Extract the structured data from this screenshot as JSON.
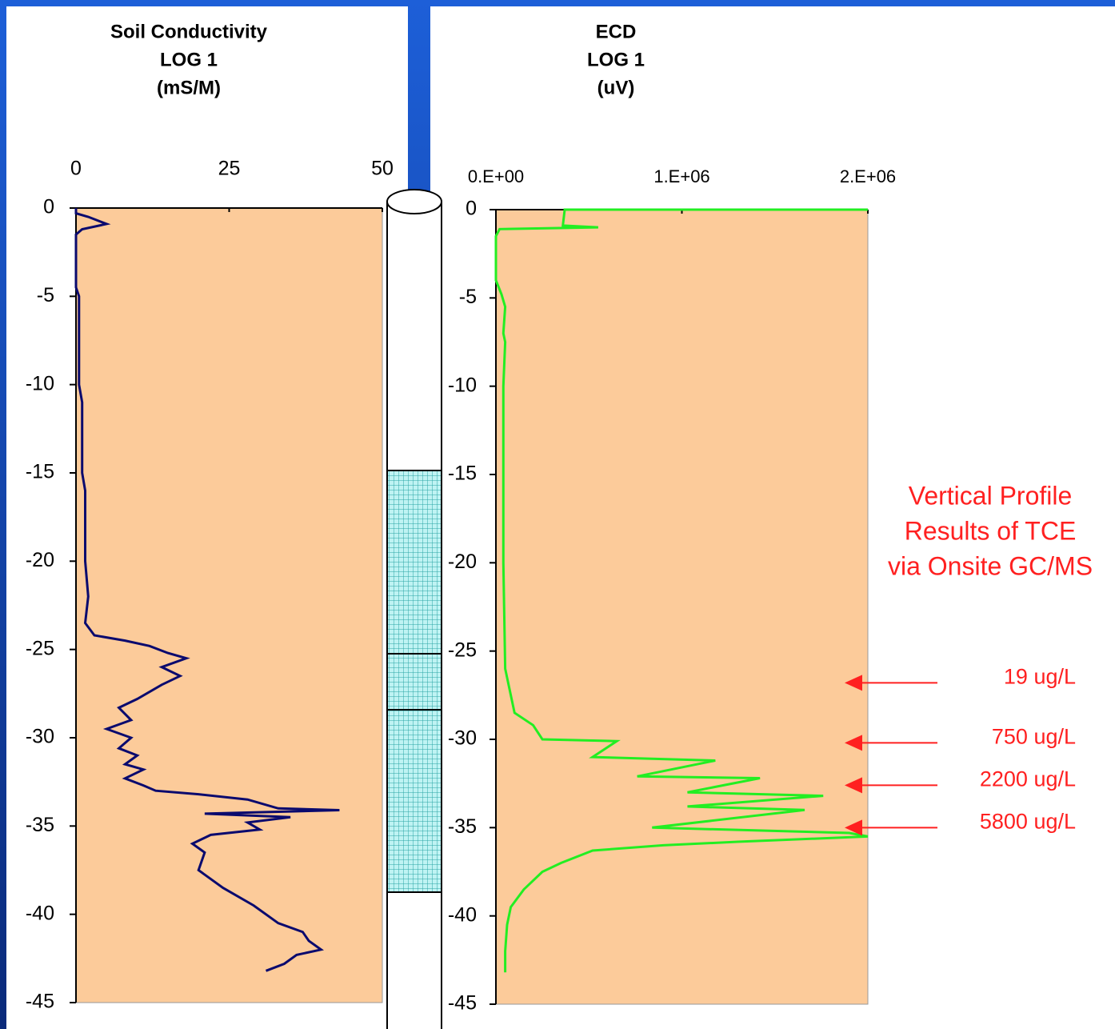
{
  "chart_data": [
    {
      "type": "line",
      "title": [
        "Soil Conductivity",
        "LOG 1",
        "(mS/M)"
      ],
      "xlim": [
        0,
        50
      ],
      "xticks": [
        0,
        25,
        50
      ],
      "ylim": [
        -45,
        0
      ],
      "yticks": [
        0,
        -5,
        -10,
        -15,
        -20,
        -25,
        -30,
        -35,
        -40,
        -45
      ],
      "plot_color": "#fccb9a",
      "series": [
        {
          "color": "#0a0a6e",
          "x": [
            0,
            0,
            2,
            5,
            1,
            0,
            0,
            0.5,
            0.5,
            1,
            1,
            1.5,
            1.5,
            2,
            1.5,
            3,
            8,
            12,
            15,
            18,
            14,
            17,
            14,
            10,
            7,
            9,
            5,
            9,
            7,
            10,
            8,
            11,
            8,
            11,
            13,
            20,
            28,
            33,
            43,
            21,
            35,
            28,
            30,
            22,
            19,
            21,
            20,
            24,
            29,
            33,
            37,
            38,
            40,
            36,
            34,
            31
          ],
          "values": [
            0,
            -0.3,
            -0.5,
            -0.9,
            -1.2,
            -1.5,
            -4.5,
            -5,
            -10,
            -11,
            -15,
            -16,
            -20,
            -22,
            -23.5,
            -24.2,
            -24.5,
            -24.8,
            -25.2,
            -25.5,
            -26,
            -26.5,
            -27,
            -27.8,
            -28.3,
            -29,
            -29.5,
            -30,
            -30.6,
            -31,
            -31.5,
            -31.8,
            -32.3,
            -32.7,
            -33,
            -33.2,
            -33.5,
            -34,
            -34.1,
            -34.3,
            -34.5,
            -34.8,
            -35.2,
            -35.5,
            -36,
            -36.5,
            -37.5,
            -38.5,
            -39.5,
            -40.5,
            -41,
            -41.5,
            -42,
            -42.3,
            -42.8,
            -43.2
          ]
        }
      ]
    },
    {
      "type": "line",
      "title": [
        "ECD",
        "LOG 1",
        "(uV)"
      ],
      "xlim": [
        0,
        2000000
      ],
      "xticks": [
        {
          "value": 0,
          "label": "0.E+00"
        },
        {
          "value": 1000000,
          "label": "1.E+06"
        },
        {
          "value": 2000000,
          "label": "2.E+06"
        }
      ],
      "ylim": [
        -45,
        0
      ],
      "yticks": [
        0,
        -5,
        -10,
        -15,
        -20,
        -25,
        -30,
        -35,
        -40,
        -45
      ],
      "plot_color": "#fccb9a",
      "series": [
        {
          "color": "#22ee22",
          "x": [
            2000000,
            370000,
            360000,
            550000,
            20000,
            0,
            0,
            30000,
            50000,
            40000,
            50000,
            40000,
            40000,
            50000,
            100000,
            200000,
            250000,
            650000,
            520000,
            1180000,
            760000,
            1420000,
            1030000,
            1760000,
            1030000,
            1660000,
            840000,
            1900000,
            2000000,
            1300000,
            900000,
            520000,
            350000,
            250000,
            150000,
            80000,
            60000,
            50000,
            50000
          ],
          "values": [
            0,
            0,
            -0.9,
            -1,
            -1.1,
            -1.5,
            -4,
            -4.8,
            -5.5,
            -7,
            -7.5,
            -10,
            -20,
            -26,
            -28.5,
            -29.2,
            -30,
            -30.1,
            -31,
            -31.2,
            -32.1,
            -32.2,
            -33,
            -33.2,
            -33.8,
            -34,
            -35,
            -35.3,
            -35.5,
            -35.8,
            -36,
            -36.3,
            -37,
            -37.5,
            -38.5,
            -39.5,
            -40.5,
            -42,
            -43.2
          ]
        }
      ],
      "annotation": {
        "lines": [
          "Vertical Profile",
          "Results of TCE",
          "via Onsite GC/MS"
        ],
        "color": "#ff2020"
      },
      "markers": [
        {
          "label": "19 ug/L",
          "y": -26.8
        },
        {
          "label": "750 ug/L",
          "y": -30.2
        },
        {
          "label": "2200 ug/L",
          "y": -32.6
        },
        {
          "label": "5800 ug/L",
          "y": -35
        }
      ]
    }
  ]
}
